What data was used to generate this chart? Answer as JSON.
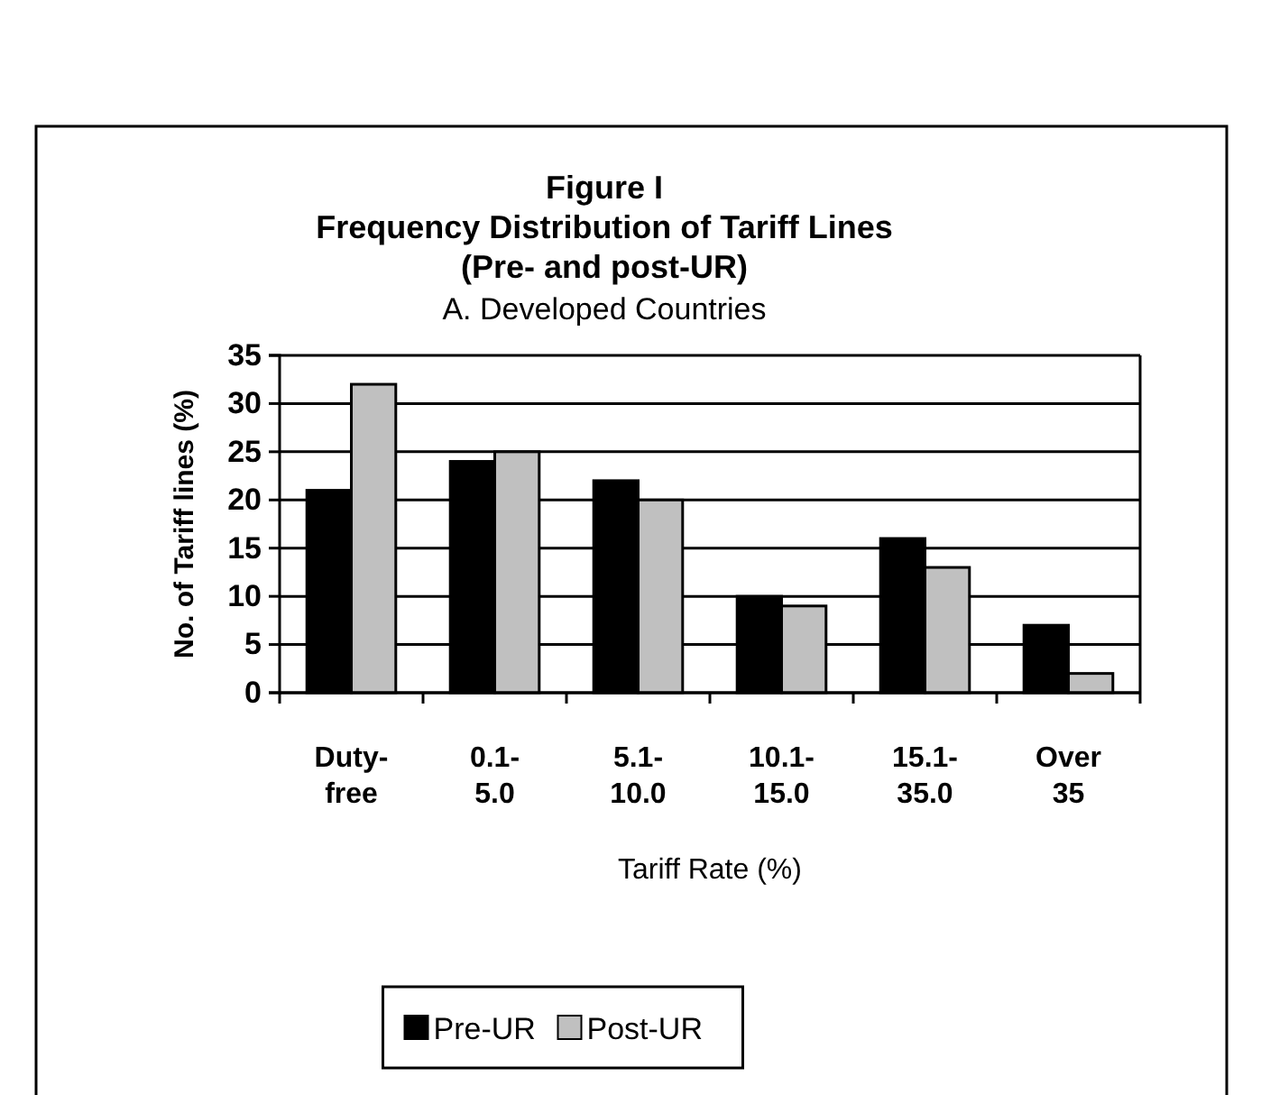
{
  "chart_data": {
    "type": "bar",
    "title": "Figure I\nFrequency Distribution of Tariff Lines\n(Pre- and post-UR)",
    "subtitle": "A. Developed Countries",
    "xlabel": "Tariff Rate (%)",
    "ylabel": "No. of Tariff lines (%)",
    "categories": [
      "Duty- free",
      "0.1- 5.0",
      "5.1- 10.0",
      "10.1- 15.0",
      "15.1- 35.0",
      "Over 35"
    ],
    "series": [
      {
        "name": "Pre-UR",
        "color": "#000000",
        "values": [
          21,
          24,
          22,
          10,
          16,
          7
        ]
      },
      {
        "name": "Post-UR",
        "color": "#c0c0c0",
        "values": [
          32,
          25,
          20,
          9,
          13,
          2
        ]
      }
    ],
    "ylim": [
      0,
      35
    ],
    "yticks": [
      0,
      5,
      10,
      15,
      20,
      25,
      30,
      35
    ],
    "grid": "y",
    "legend": "bottom"
  }
}
